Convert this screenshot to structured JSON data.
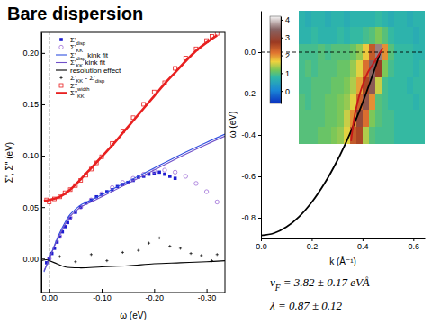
{
  "title": "Bare dispersion",
  "chart_data": [
    {
      "type": "scatter",
      "x_label": "ω (eV)",
      "y_label": "Σ', Σ'' (eV)",
      "xlim": [
        0.015,
        -0.335
      ],
      "xticks": [
        {
          "value": 0,
          "label": "0.00"
        },
        {
          "value": -0.1,
          "label": "-0.10"
        },
        {
          "value": -0.2,
          "label": "-0.20"
        },
        {
          "value": -0.3,
          "label": "-0.30"
        }
      ],
      "ylim": [
        -0.033,
        0.22
      ],
      "yticks": [
        {
          "value": 0,
          "label": "0.00"
        },
        {
          "value": 0.05,
          "label": "0.05"
        },
        {
          "value": 0.1,
          "label": "0.10"
        },
        {
          "value": 0.15,
          "label": "0.15"
        },
        {
          "value": 0.2,
          "label": "0.20"
        }
      ],
      "grid": false,
      "legend": "upper left",
      "vline": 0,
      "series": [
        {
          "name": "Σ'disp",
          "type": "scatter",
          "marker": "square",
          "color": "#1c1cd0",
          "x": [
            0.005,
            0,
            -0.005,
            -0.01,
            -0.015,
            -0.02,
            -0.025,
            -0.03,
            -0.035,
            -0.04,
            -0.05,
            -0.06,
            -0.07,
            -0.08,
            -0.09,
            -0.1,
            -0.11,
            -0.12,
            -0.13,
            -0.14,
            -0.15,
            -0.16,
            -0.17,
            -0.18,
            -0.19,
            -0.2,
            -0.21,
            -0.22,
            -0.23,
            -0.24
          ],
          "values": [
            -0.004,
            0.0,
            0.005,
            0.01,
            0.016,
            0.021,
            0.026,
            0.031,
            0.035,
            0.039,
            0.045,
            0.05,
            0.054,
            0.057,
            0.06,
            0.062,
            0.065,
            0.067,
            0.07,
            0.072,
            0.074,
            0.076,
            0.079,
            0.08,
            0.082,
            0.083,
            0.084,
            0.082,
            0.08,
            0.078
          ]
        },
        {
          "name": "Σ'KK",
          "type": "scatter",
          "marker": "circle",
          "color": "#a070d8",
          "x": [
            0,
            -0.02,
            -0.04,
            -0.06,
            -0.08,
            -0.1,
            -0.12,
            -0.14,
            -0.16,
            -0.18,
            -0.2,
            -0.22,
            -0.24,
            -0.26,
            -0.28,
            -0.3,
            -0.32
          ],
          "values": [
            0.0,
            0.022,
            0.04,
            0.05,
            0.057,
            0.063,
            0.069,
            0.074,
            0.078,
            0.082,
            0.085,
            0.086,
            0.084,
            0.08,
            0.073,
            0.065,
            0.055
          ]
        },
        {
          "name": "Σ'disp kink fit",
          "type": "line",
          "line_style": "solid",
          "color": "#3050e0",
          "x": [
            0.01,
            0,
            -0.01,
            -0.02,
            -0.03,
            -0.04,
            -0.05,
            -0.06,
            -0.08,
            -0.1,
            -0.15,
            -0.2,
            -0.25,
            -0.3,
            -0.335
          ],
          "values": [
            -0.013,
            0,
            0.013,
            0.025,
            0.035,
            0.043,
            0.048,
            0.052,
            0.057,
            0.062,
            0.075,
            0.088,
            0.101,
            0.113,
            0.121
          ]
        },
        {
          "name": "Σ'KK kink fit",
          "type": "line",
          "line_style": "solid",
          "color": "#7050c8",
          "x": [
            0.01,
            0,
            -0.01,
            -0.02,
            -0.03,
            -0.04,
            -0.05,
            -0.06,
            -0.08,
            -0.1,
            -0.15,
            -0.2,
            -0.25,
            -0.3,
            -0.335
          ],
          "values": [
            -0.012,
            0,
            0.012,
            0.023,
            0.033,
            0.041,
            0.046,
            0.05,
            0.055,
            0.06,
            0.073,
            0.086,
            0.099,
            0.111,
            0.119
          ]
        },
        {
          "name": "resolution effect",
          "type": "line",
          "line_style": "solid",
          "color": "#000000",
          "x": [
            0.015,
            0.005,
            0,
            -0.01,
            -0.03,
            -0.06,
            -0.1,
            -0.15,
            -0.2,
            -0.25,
            -0.3,
            -0.335
          ],
          "values": [
            -0.002,
            -0.001,
            -0.002,
            -0.004,
            -0.008,
            -0.009,
            -0.008,
            -0.007,
            -0.005,
            -0.004,
            -0.003,
            -0.002
          ]
        },
        {
          "name": "Σ'KK - Σ'disp",
          "type": "scatter",
          "marker": "plus",
          "color": "#000000",
          "x": [
            -0.02,
            -0.05,
            -0.08,
            -0.11,
            -0.14,
            -0.17,
            -0.19,
            -0.21,
            -0.23,
            -0.25,
            -0.27,
            -0.29,
            -0.31,
            -0.32
          ],
          "values": [
            0.002,
            -0.003,
            0.004,
            -0.002,
            0.006,
            0.008,
            0.015,
            0.02,
            0.012,
            0.01,
            0.005,
            0.003,
            -0.002,
            0.004
          ]
        },
        {
          "name": "Σ''width",
          "type": "scatter",
          "marker": "square-open",
          "color": "#e82020",
          "x": [
            0.005,
            0,
            -0.01,
            -0.02,
            -0.03,
            -0.04,
            -0.05,
            -0.06,
            -0.07,
            -0.08,
            -0.09,
            -0.1,
            -0.12,
            -0.14,
            -0.16,
            -0.18,
            -0.2,
            -0.22,
            -0.24,
            -0.26,
            -0.28,
            -0.3,
            -0.31,
            -0.32
          ],
          "values": [
            0.057,
            0.055,
            0.058,
            0.06,
            0.064,
            0.067,
            0.071,
            0.076,
            0.081,
            0.087,
            0.093,
            0.099,
            0.112,
            0.124,
            0.137,
            0.15,
            0.162,
            0.171,
            0.185,
            0.195,
            0.204,
            0.212,
            0.216,
            0.219
          ]
        },
        {
          "name": "Σ''KK",
          "type": "line",
          "line_style": "solid",
          "color": "#e82020",
          "x": [
            0.01,
            0,
            -0.02,
            -0.04,
            -0.06,
            -0.08,
            -0.1,
            -0.12,
            -0.14,
            -0.16,
            -0.18,
            -0.2,
            -0.22,
            -0.24,
            -0.26,
            -0.28,
            -0.3,
            -0.32
          ],
          "values": [
            0.056,
            0.057,
            0.06,
            0.067,
            0.077,
            0.088,
            0.099,
            0.11,
            0.122,
            0.134,
            0.146,
            0.158,
            0.17,
            0.181,
            0.192,
            0.202,
            0.21,
            0.217
          ]
        }
      ]
    },
    {
      "type": "heatmap",
      "x_label": "k (Å⁻¹)",
      "y_label": "ω (eV)",
      "xlim": [
        0,
        0.645
      ],
      "xticks": [
        {
          "value": 0,
          "label": "0.0"
        },
        0.2,
        0.4,
        0.6
      ],
      "ylim": [
        -0.9,
        0.2
      ],
      "yticks": [
        {
          "value": 0,
          "label": "0.0"
        },
        -0.2,
        -0.4,
        -0.6,
        -0.8
      ],
      "grid": false,
      "hline": 0,
      "heatmap": {
        "x_edges": [
          0.15,
          0.175,
          0.2,
          0.225,
          0.25,
          0.275,
          0.3,
          0.325,
          0.35,
          0.375,
          0.4,
          0.425,
          0.45,
          0.475,
          0.5,
          0.525,
          0.55,
          0.575,
          0.6,
          0.625,
          0.65
        ],
        "y_edges": [
          0.2,
          0.12,
          0.04,
          -0.04,
          -0.12,
          -0.2,
          -0.28,
          -0.36,
          -0.44
        ],
        "cells": [
          [
            0.7,
            0.6,
            0.7,
            0.7,
            0.6,
            0.7,
            0.7,
            0.6,
            0.7,
            0.7,
            0.7,
            0.7,
            0.8,
            0.7,
            0.6,
            0.7,
            0.7,
            0.6,
            0.7,
            0.7
          ],
          [
            0.7,
            0.7,
            0.8,
            0.7,
            0.7,
            0.7,
            0.8,
            0.7,
            0.8,
            0.8,
            0.9,
            1.0,
            1.2,
            1.0,
            0.8,
            0.7,
            0.7,
            0.7,
            0.6,
            0.7
          ],
          [
            0.9,
            0.9,
            0.9,
            1.0,
            0.9,
            1.0,
            1.0,
            1.0,
            1.1,
            1.3,
            1.7,
            2.4,
            3.6,
            2.0,
            1.0,
            0.8,
            0.8,
            0.8,
            0.7,
            0.7
          ],
          [
            0.9,
            1.0,
            0.9,
            1.0,
            1.0,
            1.0,
            1.1,
            1.1,
            1.3,
            1.6,
            2.2,
            3.4,
            2.8,
            1.2,
            0.9,
            0.8,
            0.8,
            0.8,
            0.7,
            0.8
          ],
          [
            0.9,
            0.9,
            1.0,
            1.0,
            1.0,
            1.1,
            1.1,
            1.2,
            1.4,
            1.9,
            2.6,
            3.3,
            1.5,
            0.9,
            0.8,
            0.8,
            0.8,
            0.7,
            0.8,
            0.8
          ],
          [
            1.0,
            0.9,
            1.0,
            1.0,
            1.1,
            1.1,
            1.2,
            1.3,
            1.6,
            2.3,
            3.2,
            2.0,
            1.0,
            0.9,
            0.8,
            0.8,
            0.8,
            0.8,
            0.7,
            0.8
          ],
          [
            1.0,
            1.0,
            1.0,
            1.0,
            1.1,
            1.1,
            1.2,
            1.5,
            2.0,
            3.0,
            2.2,
            1.2,
            1.0,
            0.9,
            0.9,
            0.8,
            0.8,
            0.8,
            0.8,
            0.8
          ],
          [
            1.0,
            1.0,
            1.0,
            1.1,
            1.1,
            1.2,
            1.3,
            1.6,
            2.4,
            2.6,
            1.4,
            1.0,
            0.9,
            0.9,
            0.9,
            0.8,
            0.8,
            0.8,
            0.8,
            0.8
          ]
        ],
        "colorbar": {
          "range": [
            -0.7,
            4.2
          ],
          "ticks": [
            0,
            1,
            2,
            3,
            4
          ]
        }
      },
      "series": [
        {
          "type": "line",
          "line_style": "solid",
          "color": "#000000",
          "x": [
            0,
            0.05,
            0.1,
            0.15,
            0.2,
            0.25,
            0.3,
            0.35,
            0.4,
            0.45,
            0.47
          ],
          "values": [
            -0.885,
            -0.875,
            -0.845,
            -0.795,
            -0.725,
            -0.635,
            -0.525,
            -0.395,
            -0.245,
            -0.074,
            0.0
          ]
        },
        {
          "type": "line",
          "line_style": "solid",
          "color": "#c81818",
          "x": [
            0.355,
            0.36,
            0.37,
            0.385,
            0.4,
            0.42,
            0.44,
            0.455,
            0.47,
            0.48
          ],
          "values": [
            -0.43,
            -0.38,
            -0.3,
            -0.22,
            -0.16,
            -0.1,
            -0.06,
            -0.03,
            0.0,
            0.02
          ]
        }
      ],
      "annotations": [
        "vF = 3.82 ± 0.17 eVÅ",
        "λ = 0.87 ± 0.12"
      ]
    }
  ]
}
